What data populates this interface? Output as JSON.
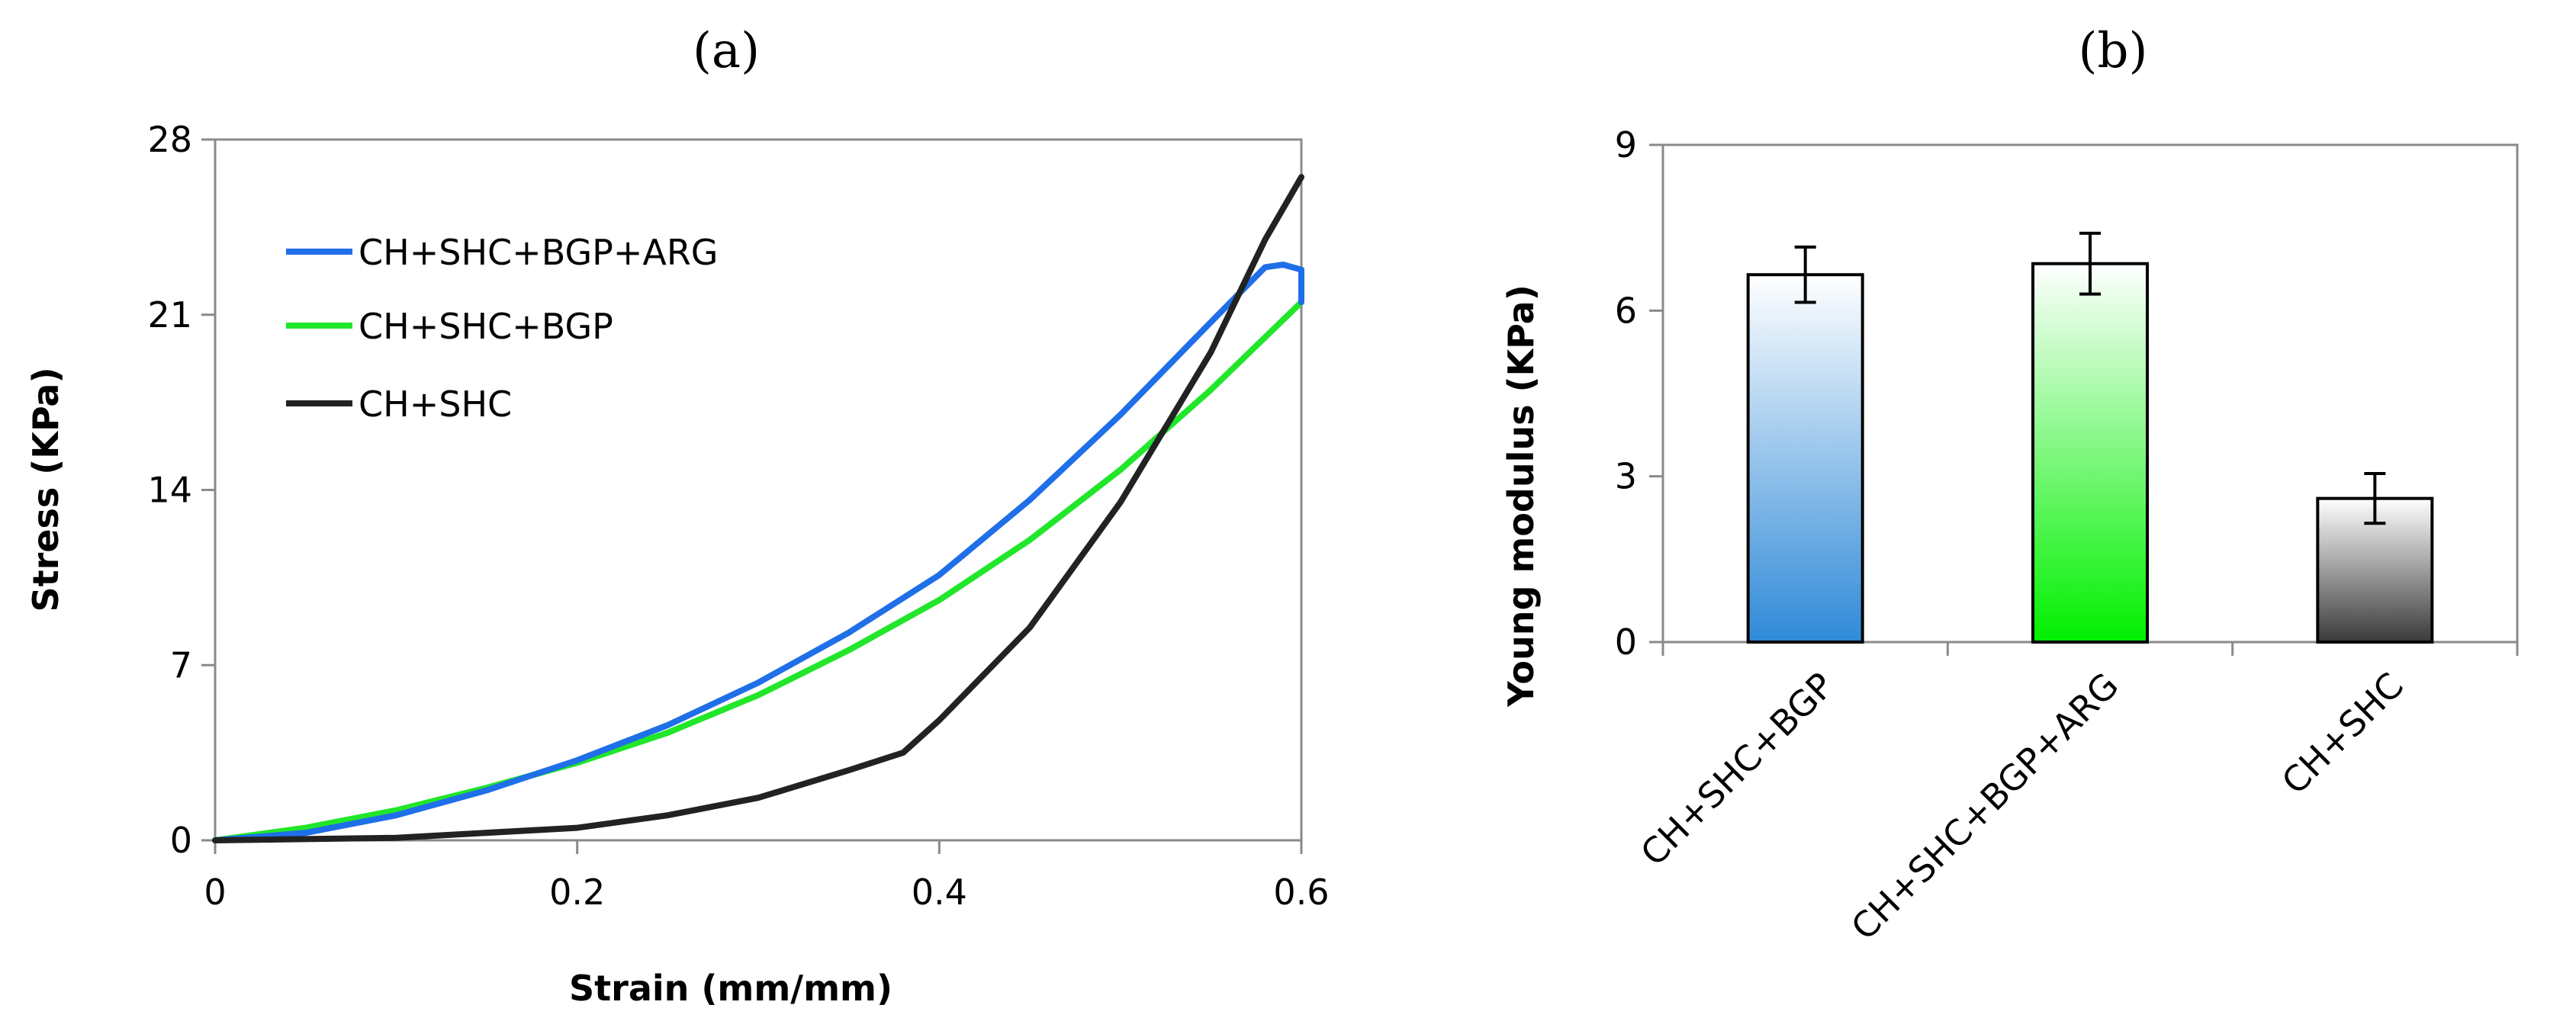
{
  "chart_data": [
    {
      "panel_label": "(a)",
      "type": "line",
      "xlabel": "Strain (mm/mm)",
      "ylabel": "Stress (KPa)",
      "xlim": [
        0,
        0.6
      ],
      "ylim": [
        0,
        28
      ],
      "xticks": [
        "0",
        "0.2",
        "0.4",
        "0.6"
      ],
      "yticks": [
        "0",
        "7",
        "14",
        "21",
        "28"
      ],
      "grid": false,
      "legend_position": "top-left",
      "series": [
        {
          "name": "CH+SHC+BGP+ARG",
          "color": "#1f6fe8",
          "x": [
            0,
            0.05,
            0.1,
            0.15,
            0.2,
            0.25,
            0.3,
            0.35,
            0.4,
            0.45,
            0.5,
            0.55,
            0.58,
            0.59,
            0.6,
            0.6
          ],
          "y": [
            0,
            0.3,
            1.0,
            2.0,
            3.2,
            4.6,
            6.3,
            8.3,
            10.6,
            13.6,
            17.0,
            20.7,
            22.9,
            23.0,
            22.8,
            21.5
          ]
        },
        {
          "name": "CH+SHC+BGP",
          "color": "#21e62a",
          "x": [
            0,
            0.05,
            0.1,
            0.15,
            0.2,
            0.25,
            0.3,
            0.35,
            0.4,
            0.45,
            0.5,
            0.55,
            0.6
          ],
          "y": [
            0,
            0.5,
            1.2,
            2.1,
            3.1,
            4.3,
            5.8,
            7.6,
            9.6,
            12.0,
            14.8,
            18.0,
            21.5
          ]
        },
        {
          "name": "CH+SHC",
          "color": "#222222",
          "x": [
            0,
            0.1,
            0.2,
            0.25,
            0.3,
            0.35,
            0.38,
            0.4,
            0.45,
            0.5,
            0.55,
            0.58,
            0.6
          ],
          "y": [
            0,
            0.1,
            0.5,
            1.0,
            1.7,
            2.8,
            3.5,
            4.8,
            8.5,
            13.5,
            19.5,
            24.0,
            26.5
          ]
        }
      ]
    },
    {
      "panel_label": "(b)",
      "type": "bar",
      "ylabel": "Young modulus (KPa)",
      "ylim": [
        0,
        9
      ],
      "yticks": [
        "0",
        "3",
        "6",
        "9"
      ],
      "grid": false,
      "categories": [
        "CH+SHC+BGP",
        "CH+SHC+BGP+ARG",
        "CH+SHC"
      ],
      "values": [
        6.65,
        6.85,
        2.6
      ],
      "errors": [
        0.5,
        0.55,
        0.45
      ],
      "bar_colors": [
        [
          "#ffffff",
          "#2f8ad8"
        ],
        [
          "#ffffff",
          "#00f000"
        ],
        [
          "#ffffff",
          "#3a3a3a"
        ]
      ]
    }
  ]
}
